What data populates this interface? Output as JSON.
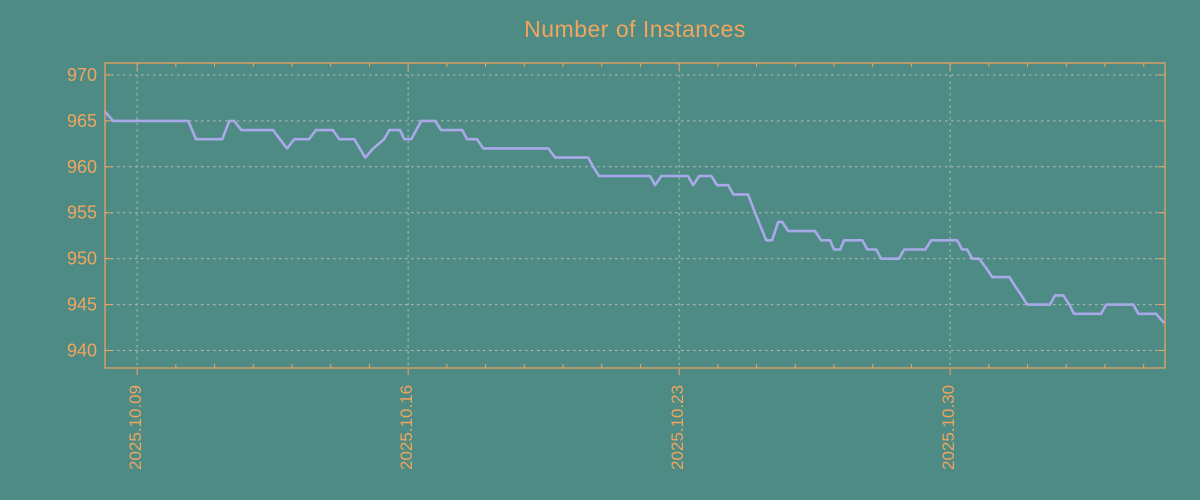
{
  "chart_data": {
    "type": "line",
    "title": "Number of Instances",
    "legend": false,
    "grid": "dashed",
    "colors": {
      "background": "#4D8B84",
      "axis_and_text": "#F1A55F",
      "line": "#A9A9E9",
      "gridline": "#B2BCB6"
    },
    "x_axis": {
      "unit": "date",
      "tick_labels": [
        "2025.10.09",
        "2025.10.16",
        "2025.10.23",
        "2025.10.30"
      ],
      "tick_days": [
        1,
        8,
        15,
        22
      ],
      "minor_tick_interval_days": 1,
      "range_days_since_2025_10_08": [
        0.17,
        27.55
      ]
    },
    "y_axis": {
      "ticks": [
        940,
        945,
        950,
        955,
        960,
        965,
        970
      ],
      "tick_labels": [
        "940",
        "945",
        "950",
        "955",
        "960",
        "965",
        "970"
      ],
      "range": [
        938.1,
        971.3
      ]
    },
    "series": [
      {
        "name": "Number of Instances",
        "x_unit": "days since 2025.10.08 (tick 2025.10.09 = 1)",
        "points": [
          [
            0.17,
            966
          ],
          [
            0.38,
            965
          ],
          [
            2.32,
            965
          ],
          [
            2.52,
            963
          ],
          [
            3.2,
            963
          ],
          [
            3.38,
            965
          ],
          [
            3.51,
            965
          ],
          [
            3.69,
            964
          ],
          [
            4.51,
            964
          ],
          [
            4.87,
            962
          ],
          [
            5.06,
            963
          ],
          [
            5.44,
            963
          ],
          [
            5.62,
            964
          ],
          [
            6.06,
            964
          ],
          [
            6.22,
            963
          ],
          [
            6.61,
            963
          ],
          [
            6.89,
            961
          ],
          [
            7.1,
            962
          ],
          [
            7.38,
            963
          ],
          [
            7.51,
            964
          ],
          [
            7.79,
            964
          ],
          [
            7.9,
            963
          ],
          [
            8.08,
            963
          ],
          [
            8.34,
            965
          ],
          [
            8.7,
            965
          ],
          [
            8.85,
            964
          ],
          [
            9.4,
            964
          ],
          [
            9.52,
            963
          ],
          [
            9.78,
            963
          ],
          [
            9.94,
            962
          ],
          [
            11.62,
            962
          ],
          [
            11.8,
            961
          ],
          [
            12.65,
            961
          ],
          [
            12.78,
            960
          ],
          [
            12.93,
            959
          ],
          [
            14.25,
            959
          ],
          [
            14.38,
            958
          ],
          [
            14.54,
            959
          ],
          [
            15.23,
            959
          ],
          [
            15.36,
            958
          ],
          [
            15.52,
            959
          ],
          [
            15.83,
            959
          ],
          [
            15.98,
            958
          ],
          [
            16.27,
            958
          ],
          [
            16.4,
            957
          ],
          [
            16.78,
            957
          ],
          [
            16.96,
            955
          ],
          [
            17.25,
            952
          ],
          [
            17.4,
            952
          ],
          [
            17.56,
            954
          ],
          [
            17.66,
            954
          ],
          [
            17.82,
            953
          ],
          [
            18.51,
            953
          ],
          [
            18.67,
            952
          ],
          [
            18.9,
            952
          ],
          [
            19.0,
            951
          ],
          [
            19.16,
            951
          ],
          [
            19.26,
            952
          ],
          [
            19.73,
            952
          ],
          [
            19.86,
            951
          ],
          [
            20.09,
            951
          ],
          [
            20.22,
            950
          ],
          [
            20.68,
            950
          ],
          [
            20.81,
            951
          ],
          [
            21.36,
            951
          ],
          [
            21.51,
            952
          ],
          [
            22.18,
            952
          ],
          [
            22.31,
            951
          ],
          [
            22.44,
            951
          ],
          [
            22.57,
            950
          ],
          [
            22.75,
            950
          ],
          [
            22.93,
            949
          ],
          [
            23.09,
            948
          ],
          [
            23.53,
            948
          ],
          [
            23.68,
            947
          ],
          [
            23.84,
            946
          ],
          [
            23.99,
            945
          ],
          [
            24.58,
            945
          ],
          [
            24.71,
            946
          ],
          [
            24.92,
            946
          ],
          [
            25.08,
            945
          ],
          [
            25.2,
            944
          ],
          [
            25.9,
            944
          ],
          [
            26.03,
            945
          ],
          [
            26.73,
            945
          ],
          [
            26.86,
            944
          ],
          [
            27.32,
            944
          ],
          [
            27.53,
            943
          ]
        ]
      }
    ]
  }
}
